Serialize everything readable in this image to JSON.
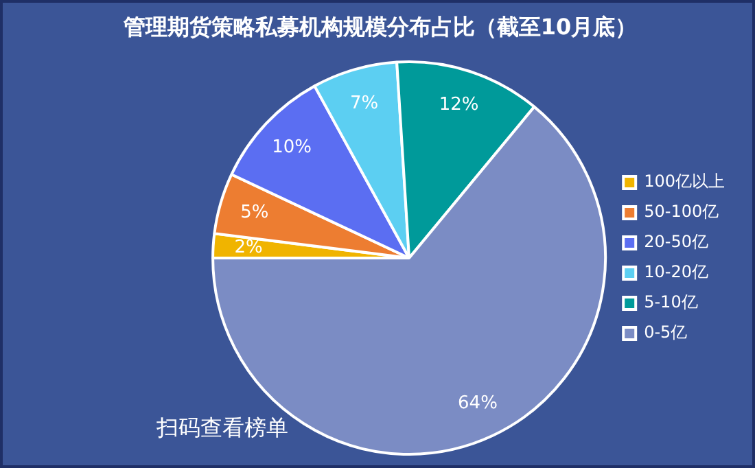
{
  "chart_data": {
    "type": "pie",
    "title": "管理期货策略私募机构规模分布占比（截至10月底）",
    "categories": [
      "100亿以上",
      "50-100亿",
      "20-50亿",
      "10-20亿",
      "5-10亿",
      "0-5亿"
    ],
    "values": [
      2,
      5,
      10,
      7,
      12,
      64
    ],
    "value_labels": [
      "2%",
      "5%",
      "10%",
      "7%",
      "12%",
      "64%"
    ],
    "colors": [
      "#f0b400",
      "#ed7d31",
      "#5b6ef2",
      "#5ccff2",
      "#009a9a",
      "#7b8cc4"
    ],
    "legend": "right",
    "annotations": [
      "扫码查看榜单"
    ]
  }
}
